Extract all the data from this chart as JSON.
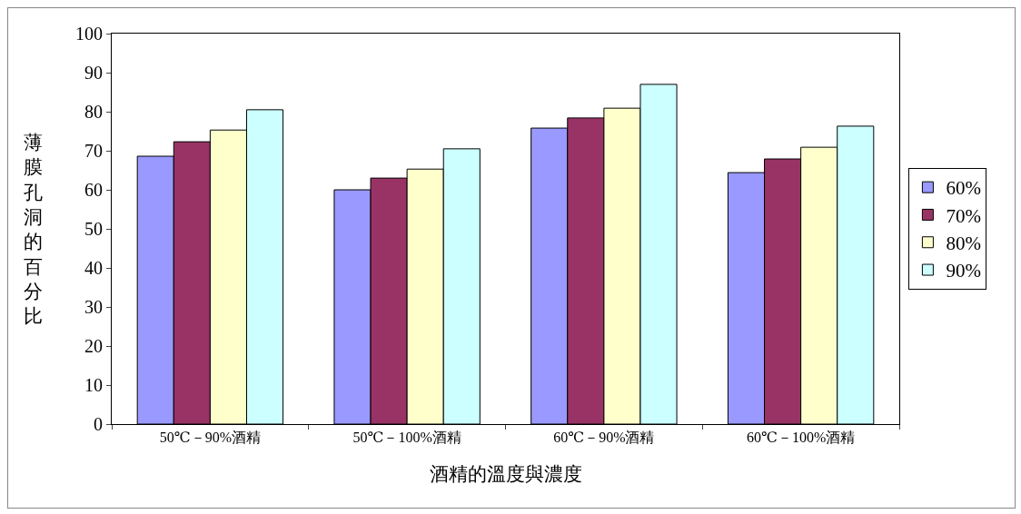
{
  "chart_data": {
    "type": "bar",
    "xlabel": "酒精的溫度與濃度",
    "ylabel": "薄膜孔洞的百分比",
    "categories": [
      "50℃－90%酒精",
      "50℃－100%酒精",
      "60℃－90%酒精",
      "60℃－100%酒精"
    ],
    "series": [
      {
        "name": "60%",
        "color": "#9999ff",
        "values": [
          68.6,
          60,
          75.8,
          64.4
        ]
      },
      {
        "name": "70%",
        "color": "#993366",
        "values": [
          72.3,
          63,
          78.4,
          67.9
        ]
      },
      {
        "name": "80%",
        "color": "#ffffcc",
        "values": [
          75.3,
          65.3,
          80.9,
          70.9
        ]
      },
      {
        "name": "90%",
        "color": "#ccffff",
        "values": [
          80.5,
          70.5,
          87,
          76.3
        ]
      }
    ],
    "ylim": [
      0,
      100
    ],
    "yticks": [
      0,
      10,
      20,
      30,
      40,
      50,
      60,
      70,
      80,
      90,
      100
    ],
    "grid": false,
    "legend": "right"
  }
}
